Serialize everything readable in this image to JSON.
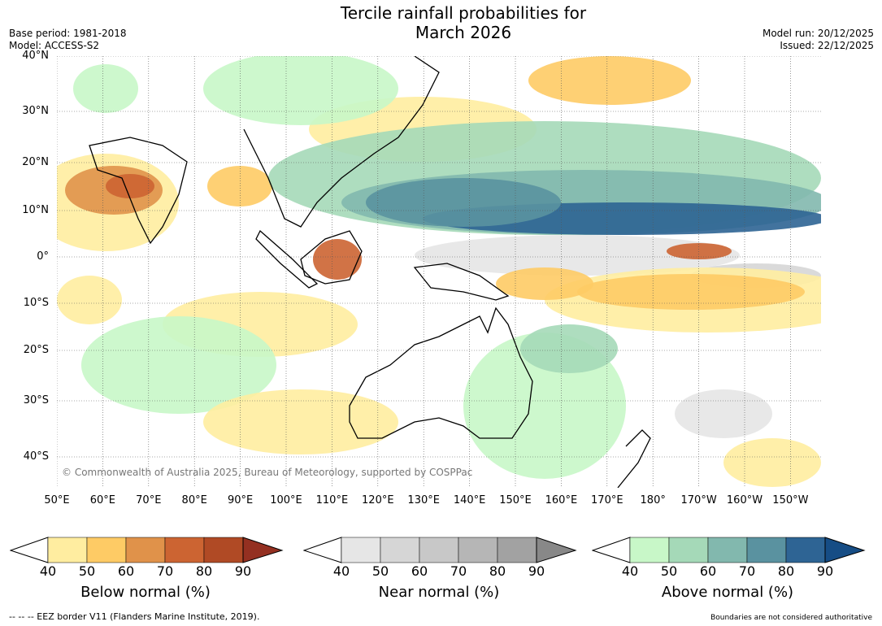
{
  "title_line1": "Tercile rainfall probabilities for",
  "title_line2": "March 2026",
  "base_period": "Base period: 1981-2018",
  "model": "Model: ACCESS-S2",
  "model_run": "Model run: 20/12/2025",
  "issued": "Issued: 22/12/2025",
  "copyright": "© Commonwealth of Australia 2025, Bureau of Meteorology, supported by COSPPac",
  "lat_labels": [
    "40°N",
    "30°N",
    "20°N",
    "10°N",
    "0°",
    "10°S",
    "20°S",
    "30°S",
    "40°S"
  ],
  "lon_labels": [
    "50°E",
    "60°E",
    "70°E",
    "80°E",
    "90°E",
    "100°E",
    "110°E",
    "120°E",
    "130°E",
    "140°E",
    "150°E",
    "160°E",
    "170°E",
    "180°",
    "170°W",
    "160°W",
    "150°W"
  ],
  "colorbars": [
    {
      "label": "Below normal (%)",
      "ticks": [
        "40",
        "50",
        "60",
        "70",
        "80",
        "90"
      ],
      "colors": [
        "#ffeda0",
        "#fecb65",
        "#e0924a",
        "#cc6432",
        "#b04a25",
        "#943021"
      ]
    },
    {
      "label": "Near normal (%)",
      "ticks": [
        "40",
        "50",
        "60",
        "70",
        "80",
        "90"
      ],
      "colors": [
        "#e6e6e6",
        "#d6d6d6",
        "#c8c8c8",
        "#b6b6b6",
        "#a2a2a2",
        "#888888"
      ]
    },
    {
      "label": "Above normal (%)",
      "ticks": [
        "40",
        "50",
        "60",
        "70",
        "80",
        "90"
      ],
      "colors": [
        "#c8f7c8",
        "#a5d9b8",
        "#82b8ae",
        "#5a92a0",
        "#2e6494",
        "#164d85"
      ]
    }
  ],
  "footer_left": "--  --  -- EEZ border V11 (Flanders Marine Institute, 2019).",
  "footer_right": "Boundaries are not considered authoritative"
}
